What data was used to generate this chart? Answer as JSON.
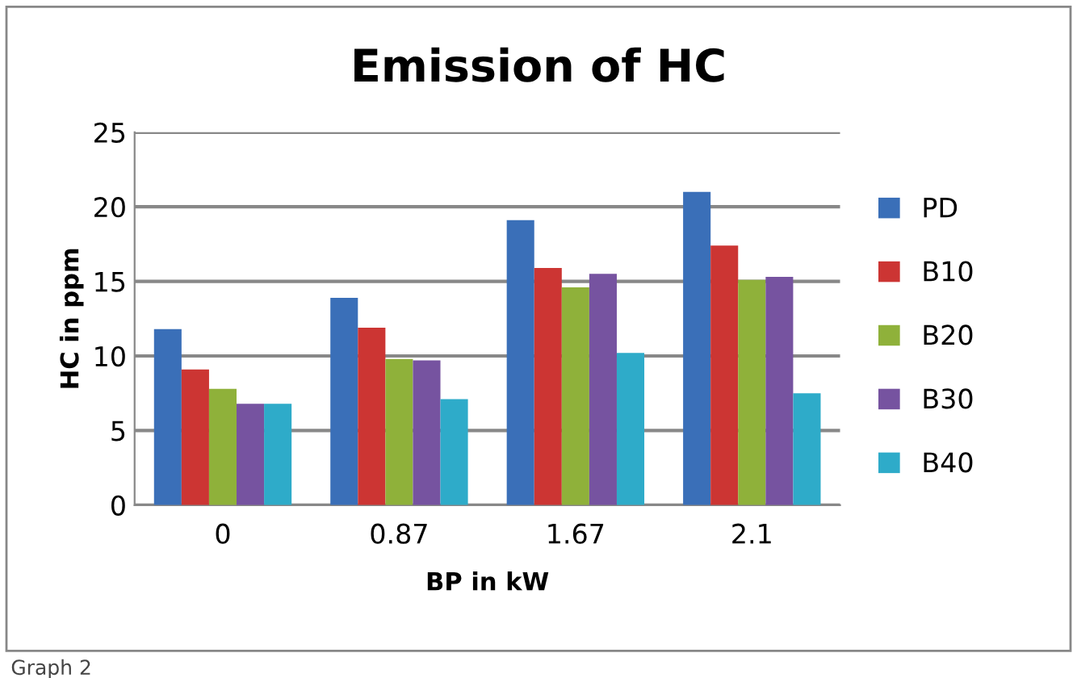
{
  "chart_data": {
    "type": "bar",
    "title": "Emission of HC",
    "xlabel": "BP in kW",
    "ylabel": "HC in ppm",
    "categories": [
      "0",
      "0.87",
      "1.67",
      "2.1"
    ],
    "series": [
      {
        "name": "PD",
        "color": "#3a6fb8",
        "values": [
          11.8,
          13.9,
          19.1,
          21.0
        ]
      },
      {
        "name": "B10",
        "color": "#cc3533",
        "values": [
          9.1,
          11.9,
          15.9,
          17.4
        ]
      },
      {
        "name": "B20",
        "color": "#8fb13a",
        "values": [
          7.8,
          9.8,
          14.6,
          15.1
        ]
      },
      {
        "name": "B30",
        "color": "#7653a0",
        "values": [
          6.8,
          9.7,
          15.5,
          15.3
        ]
      },
      {
        "name": "B40",
        "color": "#2eabc9",
        "values": [
          6.8,
          7.1,
          10.2,
          7.5
        ]
      }
    ],
    "ylim": [
      0,
      25
    ],
    "yticks": [
      0,
      5,
      10,
      15,
      20,
      25
    ],
    "grid": "y",
    "legend": "right",
    "annotations": [
      "Graph 2"
    ]
  }
}
